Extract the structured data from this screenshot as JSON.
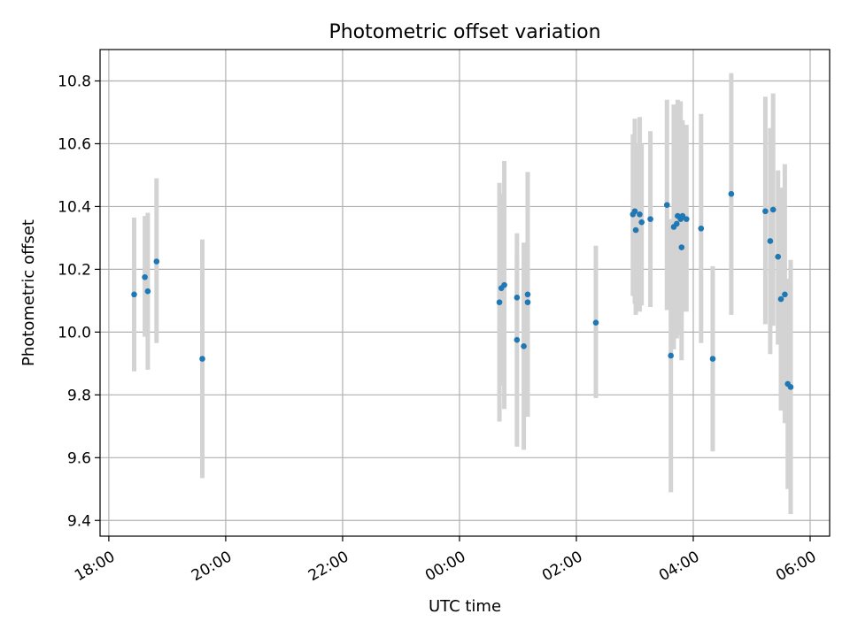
{
  "chart_data": {
    "type": "scatter",
    "title": "Photometric offset variation",
    "xlabel": "UTC time",
    "ylabel": "Photometric offset",
    "grid": true,
    "x_ticks": [
      "18:00",
      "20:00",
      "22:00",
      "00:00",
      "02:00",
      "04:00",
      "06:00"
    ],
    "x_tick_hours": [
      18,
      20,
      22,
      24,
      26,
      28,
      30
    ],
    "y_ticks": [
      "9.4",
      "9.6",
      "9.8",
      "10.0",
      "10.2",
      "10.4",
      "10.6",
      "10.8"
    ],
    "y_tick_values": [
      9.4,
      9.6,
      9.8,
      10.0,
      10.2,
      10.4,
      10.6,
      10.8
    ],
    "xlim": [
      "17:51",
      "30:20"
    ],
    "ylim": [
      9.35,
      10.9
    ],
    "marker_color": "#1f77b4",
    "errorbar_color": "#d3d3d3",
    "points": [
      {
        "t": "18:26",
        "y": 10.12,
        "lo": 9.875,
        "hi": 10.365
      },
      {
        "t": "18:37",
        "y": 10.175,
        "lo": 9.985,
        "hi": 10.37
      },
      {
        "t": "18:40",
        "y": 10.13,
        "lo": 9.88,
        "hi": 10.38
      },
      {
        "t": "18:49",
        "y": 10.225,
        "lo": 9.965,
        "hi": 10.49
      },
      {
        "t": "19:36",
        "y": 9.915,
        "lo": 9.535,
        "hi": 10.295
      },
      {
        "t": "00:41",
        "y": 10.095,
        "lo": 9.715,
        "hi": 10.475
      },
      {
        "t": "00:43",
        "y": 10.14,
        "lo": 9.83,
        "hi": 10.44
      },
      {
        "t": "00:46",
        "y": 10.15,
        "lo": 9.755,
        "hi": 10.545
      },
      {
        "t": "00:59",
        "y": 10.11,
        "lo": 9.975,
        "hi": 10.25
      },
      {
        "t": "00:59",
        "y": 9.975,
        "lo": 9.635,
        "hi": 10.315
      },
      {
        "t": "01:06",
        "y": 9.955,
        "lo": 9.625,
        "hi": 10.285
      },
      {
        "t": "01:10",
        "y": 10.12,
        "lo": 9.73,
        "hi": 10.51
      },
      {
        "t": "01:10",
        "y": 10.095,
        "lo": 9.905,
        "hi": 10.285
      },
      {
        "t": "02:20",
        "y": 10.03,
        "lo": 9.79,
        "hi": 10.275
      },
      {
        "t": "02:58",
        "y": 10.375,
        "lo": 10.115,
        "hi": 10.63
      },
      {
        "t": "03:00",
        "y": 10.385,
        "lo": 10.09,
        "hi": 10.68
      },
      {
        "t": "03:01",
        "y": 10.325,
        "lo": 10.055,
        "hi": 10.6
      },
      {
        "t": "03:05",
        "y": 10.375,
        "lo": 10.065,
        "hi": 10.685
      },
      {
        "t": "03:07",
        "y": 10.35,
        "lo": 10.085,
        "hi": 10.6
      },
      {
        "t": "03:16",
        "y": 10.36,
        "lo": 10.08,
        "hi": 10.64
      },
      {
        "t": "03:33",
        "y": 10.405,
        "lo": 10.07,
        "hi": 10.74
      },
      {
        "t": "03:37",
        "y": 9.925,
        "lo": 9.49,
        "hi": 10.36
      },
      {
        "t": "03:40",
        "y": 10.335,
        "lo": 9.945,
        "hi": 10.725
      },
      {
        "t": "03:43",
        "y": 10.345,
        "lo": 9.98,
        "hi": 10.71
      },
      {
        "t": "03:44",
        "y": 10.37,
        "lo": 10.0,
        "hi": 10.74
      },
      {
        "t": "03:47",
        "y": 10.36,
        "lo": 9.99,
        "hi": 10.735
      },
      {
        "t": "03:48",
        "y": 10.27,
        "lo": 9.91,
        "hi": 10.63
      },
      {
        "t": "03:49",
        "y": 10.37,
        "lo": 10.065,
        "hi": 10.675
      },
      {
        "t": "03:53",
        "y": 10.36,
        "lo": 10.065,
        "hi": 10.66
      },
      {
        "t": "04:08",
        "y": 10.33,
        "lo": 9.965,
        "hi": 10.695
      },
      {
        "t": "04:20",
        "y": 9.915,
        "lo": 9.62,
        "hi": 10.21
      },
      {
        "t": "04:39",
        "y": 10.44,
        "lo": 10.055,
        "hi": 10.825
      },
      {
        "t": "05:14",
        "y": 10.385,
        "lo": 10.025,
        "hi": 10.75
      },
      {
        "t": "05:19",
        "y": 10.29,
        "lo": 9.93,
        "hi": 10.65
      },
      {
        "t": "05:22",
        "y": 10.39,
        "lo": 10.02,
        "hi": 10.76
      },
      {
        "t": "05:27",
        "y": 10.24,
        "lo": 9.96,
        "hi": 10.515
      },
      {
        "t": "05:30",
        "y": 10.105,
        "lo": 9.75,
        "hi": 10.46
      },
      {
        "t": "05:34",
        "y": 10.12,
        "lo": 9.71,
        "hi": 10.535
      },
      {
        "t": "05:37",
        "y": 9.835,
        "lo": 9.5,
        "hi": 10.17
      },
      {
        "t": "05:40",
        "y": 9.825,
        "lo": 9.42,
        "hi": 10.23
      }
    ]
  }
}
